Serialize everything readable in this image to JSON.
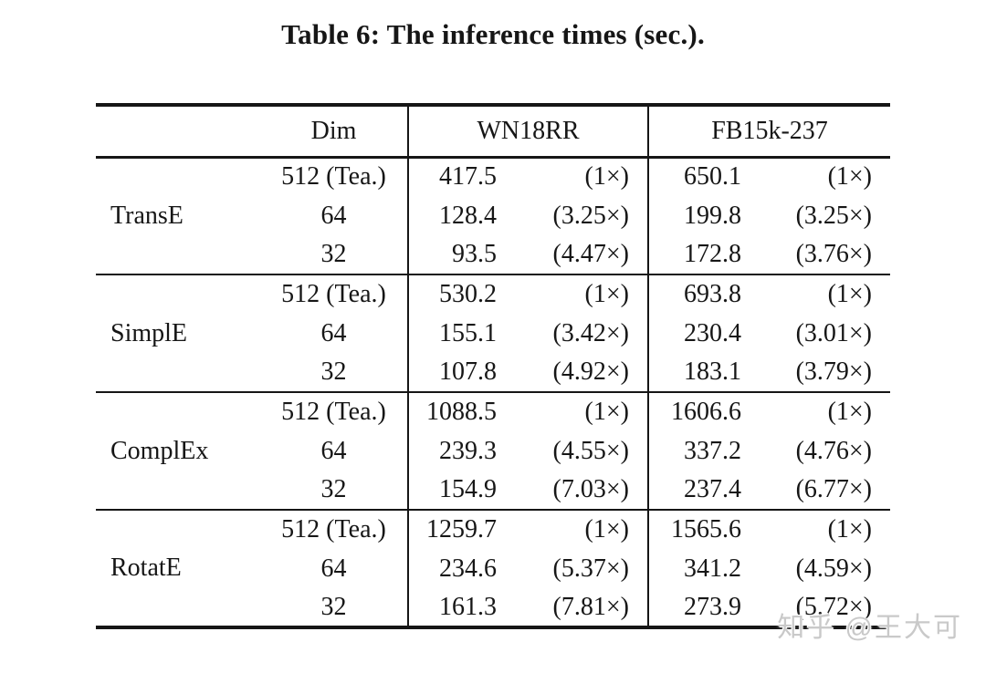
{
  "caption": "Table 6: The inference times (sec.).",
  "watermark": "知乎 @王大可",
  "table": {
    "headers": {
      "model": "",
      "dim": "Dim",
      "wn18rr": "WN18RR",
      "fb15k237": "FB15k-237"
    },
    "groups": [
      {
        "model": "TransE",
        "rows": [
          {
            "dim": "512 (Tea.)",
            "wn_time": "417.5",
            "wn_speedup": "(1×)",
            "fb_time": "650.1",
            "fb_speedup": "(1×)"
          },
          {
            "dim": "64",
            "wn_time": "128.4",
            "wn_speedup": "(3.25×)",
            "fb_time": "199.8",
            "fb_speedup": "(3.25×)"
          },
          {
            "dim": "32",
            "wn_time": "93.5",
            "wn_speedup": "(4.47×)",
            "fb_time": "172.8",
            "fb_speedup": "(3.76×)"
          }
        ]
      },
      {
        "model": "SimplE",
        "rows": [
          {
            "dim": "512 (Tea.)",
            "wn_time": "530.2",
            "wn_speedup": "(1×)",
            "fb_time": "693.8",
            "fb_speedup": "(1×)"
          },
          {
            "dim": "64",
            "wn_time": "155.1",
            "wn_speedup": "(3.42×)",
            "fb_time": "230.4",
            "fb_speedup": "(3.01×)"
          },
          {
            "dim": "32",
            "wn_time": "107.8",
            "wn_speedup": "(4.92×)",
            "fb_time": "183.1",
            "fb_speedup": "(3.79×)"
          }
        ]
      },
      {
        "model": "ComplEx",
        "rows": [
          {
            "dim": "512 (Tea.)",
            "wn_time": "1088.5",
            "wn_speedup": "(1×)",
            "fb_time": "1606.6",
            "fb_speedup": "(1×)"
          },
          {
            "dim": "64",
            "wn_time": "239.3",
            "wn_speedup": "(4.55×)",
            "fb_time": "337.2",
            "fb_speedup": "(4.76×)"
          },
          {
            "dim": "32",
            "wn_time": "154.9",
            "wn_speedup": "(7.03×)",
            "fb_time": "237.4",
            "fb_speedup": "(6.77×)"
          }
        ]
      },
      {
        "model": "RotatE",
        "rows": [
          {
            "dim": "512 (Tea.)",
            "wn_time": "1259.7",
            "wn_speedup": "(1×)",
            "fb_time": "1565.6",
            "fb_speedup": "(1×)"
          },
          {
            "dim": "64",
            "wn_time": "234.6",
            "wn_speedup": "(5.37×)",
            "fb_time": "341.2",
            "fb_speedup": "(4.59×)"
          },
          {
            "dim": "32",
            "wn_time": "161.3",
            "wn_speedup": "(7.81×)",
            "fb_time": "273.9",
            "fb_speedup": "(5.72×)"
          }
        ]
      }
    ]
  }
}
